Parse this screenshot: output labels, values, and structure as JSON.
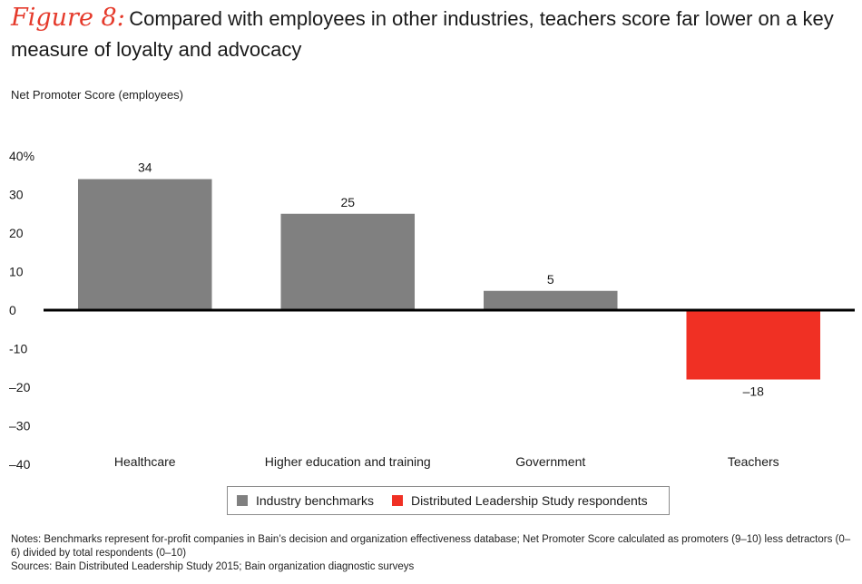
{
  "title": {
    "figure_label": "Figure 8:",
    "text": "Compared with employees in other industries, teachers score far lower on a key measure of loyalty and advocacy"
  },
  "subtitle": "Net Promoter Score (employees)",
  "chart_data": {
    "type": "bar",
    "categories": [
      "Healthcare",
      "Higher education and training",
      "Government",
      "Teachers"
    ],
    "values": [
      34,
      25,
      5,
      -18
    ],
    "data_labels": [
      "34",
      "25",
      "5",
      "–18"
    ],
    "bar_series": [
      "Industry benchmarks",
      "Industry benchmarks",
      "Industry benchmarks",
      "Distributed Leadership Study respondents"
    ],
    "ylim": [
      -40,
      40
    ],
    "yticks": [
      40,
      30,
      20,
      10,
      0,
      -10,
      -20,
      -30,
      -40
    ],
    "ytick_labels": [
      "40%",
      "30",
      "20",
      "10",
      "0",
      "-10",
      "–20",
      "–30",
      "–40"
    ],
    "grid": false,
    "legend_placement": "bottom-center",
    "series": [
      {
        "name": "Industry benchmarks",
        "color": "#808080"
      },
      {
        "name": "Distributed Leadership Study respondents",
        "color": "#f03024"
      }
    ]
  },
  "notes": {
    "line1": "Notes: Benchmarks represent for-profit companies in Bain’s decision and organization effectiveness database; Net Promoter Score calculated as promoters (9–10) less detractors (0–6) divided by total respondents (0–10)",
    "line2": "Sources: Bain Distributed Leadership Study 2015; Bain organization diagnostic surveys"
  }
}
